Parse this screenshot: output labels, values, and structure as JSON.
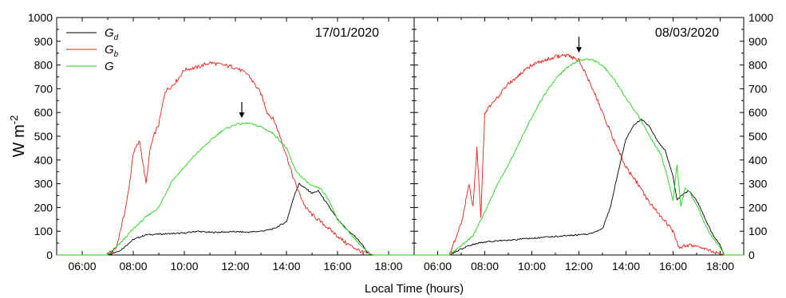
{
  "chart_data": [
    {
      "type": "line",
      "panel": "left",
      "annotation": "17/01/2020",
      "xlim": [
        "05:00",
        "19:00"
      ],
      "ylim": [
        0,
        1000
      ],
      "x_ticks": [
        "06:00",
        "08:00",
        "10:00",
        "12:00",
        "14:00",
        "16:00",
        "18:00"
      ],
      "y_ticks": [
        "0",
        "100",
        "200",
        "300",
        "400",
        "500",
        "600",
        "700",
        "800",
        "900",
        "1000"
      ],
      "y_axis_side": "left",
      "ylabel": "W m",
      "ylabel_sup": "-2",
      "legend_position": "top-left",
      "arrow": {
        "x": "12:15",
        "y": 550
      },
      "series": [
        {
          "name": "G",
          "name_sub": "d",
          "color": "#000000",
          "x": [
            "05:00",
            "07:00",
            "07:30",
            "08:00",
            "08:30",
            "09:00",
            "10:00",
            "10:30",
            "11:00",
            "12:00",
            "12:30",
            "13:00",
            "13:30",
            "14:00",
            "14:10",
            "14:20",
            "14:30",
            "14:45",
            "15:00",
            "15:15",
            "15:30",
            "16:00",
            "16:20",
            "16:40",
            "17:00",
            "17:10",
            "17:20",
            "19:00"
          ],
          "values": [
            0,
            0,
            20,
            65,
            85,
            88,
            92,
            100,
            95,
            98,
            96,
            100,
            110,
            140,
            200,
            260,
            300,
            280,
            260,
            270,
            230,
            150,
            110,
            80,
            40,
            10,
            0,
            0
          ]
        },
        {
          "name": "G",
          "name_sub": "b",
          "color": "#e8201a",
          "x": [
            "05:00",
            "07:00",
            "07:20",
            "07:40",
            "07:50",
            "08:00",
            "08:15",
            "08:30",
            "08:40",
            "08:50",
            "09:00",
            "09:15",
            "09:30",
            "09:45",
            "10:00",
            "10:30",
            "11:00",
            "11:30",
            "12:00",
            "12:30",
            "13:00",
            "13:15",
            "13:30",
            "13:45",
            "14:00",
            "14:15",
            "14:30",
            "14:45",
            "15:00",
            "15:20",
            "15:40",
            "16:00",
            "16:20",
            "16:40",
            "17:00",
            "17:15",
            "17:25",
            "19:00"
          ],
          "values": [
            0,
            0,
            30,
            180,
            280,
            430,
            480,
            300,
            450,
            510,
            550,
            690,
            710,
            740,
            780,
            790,
            810,
            800,
            790,
            760,
            680,
            600,
            570,
            500,
            420,
            330,
            260,
            200,
            170,
            140,
            110,
            80,
            50,
            30,
            10,
            5,
            0,
            0
          ]
        },
        {
          "name": "G",
          "name_sub": "",
          "color": "#22d41a",
          "x": [
            "05:00",
            "07:00",
            "07:30",
            "08:00",
            "08:30",
            "09:00",
            "09:30",
            "10:00",
            "10:30",
            "11:00",
            "11:30",
            "12:00",
            "12:30",
            "13:00",
            "13:30",
            "14:00",
            "14:20",
            "14:40",
            "15:00",
            "15:20",
            "15:40",
            "16:00",
            "16:20",
            "16:40",
            "17:00",
            "17:15",
            "17:25",
            "19:00"
          ],
          "values": [
            0,
            0,
            50,
            110,
            160,
            200,
            310,
            370,
            430,
            480,
            525,
            550,
            555,
            540,
            510,
            450,
            360,
            320,
            290,
            280,
            230,
            150,
            110,
            70,
            30,
            5,
            0,
            0
          ]
        }
      ]
    },
    {
      "type": "line",
      "panel": "right",
      "annotation": "08/03/2020",
      "xlim": [
        "05:00",
        "19:00"
      ],
      "ylim": [
        0,
        1000
      ],
      "x_ticks": [
        "06:00",
        "08:00",
        "10:00",
        "12:00",
        "14:00",
        "16:00",
        "18:00"
      ],
      "y_ticks": [
        "0",
        "100",
        "200",
        "300",
        "400",
        "500",
        "600",
        "700",
        "800",
        "900",
        "1000"
      ],
      "y_axis_side": "right",
      "arrow": {
        "x": "12:00",
        "y": 825
      },
      "series": [
        {
          "name": "G",
          "name_sub": "d",
          "color": "#000000",
          "x": [
            "05:00",
            "06:30",
            "07:00",
            "07:30",
            "08:00",
            "09:00",
            "10:00",
            "11:00",
            "12:00",
            "12:30",
            "13:00",
            "13:20",
            "13:40",
            "14:00",
            "14:20",
            "14:40",
            "15:00",
            "15:20",
            "15:40",
            "16:00",
            "16:10",
            "16:20",
            "16:40",
            "17:00",
            "17:20",
            "17:40",
            "18:00",
            "18:10",
            "19:00"
          ],
          "values": [
            0,
            0,
            25,
            45,
            55,
            62,
            70,
            78,
            85,
            90,
            110,
            200,
            350,
            490,
            550,
            570,
            540,
            480,
            440,
            330,
            230,
            250,
            270,
            230,
            160,
            90,
            40,
            0,
            0
          ]
        },
        {
          "name": "G",
          "name_sub": "b",
          "color": "#e8201a",
          "x": [
            "05:00",
            "06:30",
            "07:00",
            "07:20",
            "07:30",
            "07:40",
            "07:50",
            "08:00",
            "08:30",
            "09:00",
            "10:00",
            "11:00",
            "11:30",
            "12:00",
            "12:30",
            "13:00",
            "13:30",
            "14:00",
            "14:30",
            "15:00",
            "15:30",
            "15:50",
            "16:00",
            "16:15",
            "16:30",
            "17:00",
            "17:30",
            "18:00",
            "18:10",
            "19:00"
          ],
          "values": [
            0,
            0,
            130,
            300,
            200,
            450,
            160,
            600,
            660,
            720,
            800,
            835,
            840,
            820,
            720,
            600,
            480,
            370,
            300,
            220,
            160,
            120,
            100,
            30,
            40,
            40,
            20,
            5,
            0,
            0
          ]
        },
        {
          "name": "G",
          "name_sub": "",
          "color": "#22d41a",
          "x": [
            "05:00",
            "06:30",
            "07:00",
            "07:30",
            "08:00",
            "08:30",
            "09:00",
            "09:30",
            "10:00",
            "10:30",
            "11:00",
            "11:30",
            "12:00",
            "12:30",
            "13:00",
            "13:30",
            "14:00",
            "14:30",
            "15:00",
            "15:30",
            "15:50",
            "16:00",
            "16:10",
            "16:20",
            "16:30",
            "16:40",
            "17:00",
            "17:30",
            "18:00",
            "18:10",
            "19:00"
          ],
          "values": [
            0,
            0,
            40,
            80,
            180,
            290,
            380,
            480,
            580,
            670,
            740,
            790,
            820,
            825,
            800,
            740,
            660,
            590,
            500,
            420,
            300,
            230,
            380,
            200,
            280,
            270,
            210,
            100,
            30,
            0,
            0
          ]
        }
      ]
    }
  ],
  "xlabel": "Local Time (hours)"
}
